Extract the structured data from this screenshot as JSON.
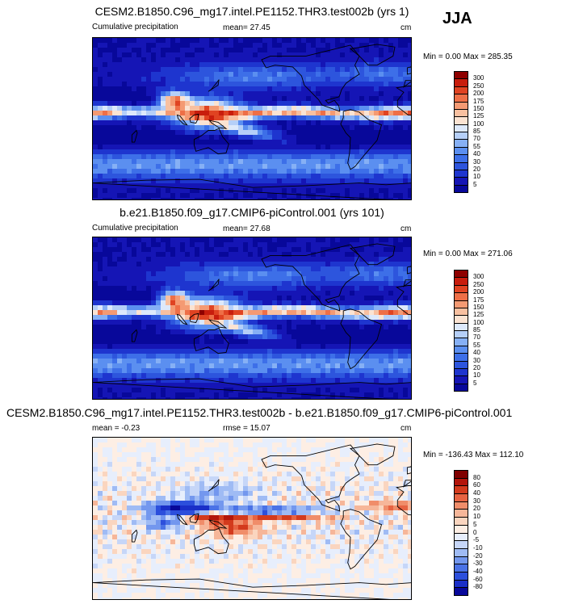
{
  "season": "JJA",
  "panels": [
    {
      "title": "CESM2.B1850.C96_mg17.intel.PE1152.THR3.test002b (yrs 1)",
      "left_label": "Cumulative precipitation",
      "center_label": "mean=  27.45",
      "unit": "cm",
      "minmax": "Min =   0.00 Max = 285.35",
      "kind": "abs"
    },
    {
      "title": "b.e21.B1850.f09_g17.CMIP6-piControl.001 (yrs 101)",
      "left_label": "Cumulative precipitation",
      "center_label": "mean=  27.68",
      "unit": "cm",
      "minmax": "Min =   0.00 Max = 271.06",
      "kind": "abs"
    },
    {
      "title": "CESM2.B1850.C96_mg17.intel.PE1152.THR3.test002b - b.e21.B1850.f09_g17.CMIP6-piControl.001",
      "left_label": "mean =  -0.23",
      "center_label": "rmse =  15.07",
      "unit": "cm",
      "minmax": "Min = -136.43 Max = 112.10",
      "kind": "diff"
    }
  ],
  "chart_data": [
    {
      "type": "heatmap",
      "title": "CESM2.B1850.C96_mg17.intel.PE1152.THR3.test002b (yrs 1)",
      "variable": "Cumulative precipitation",
      "units": "cm",
      "mean": 27.45,
      "min": 0.0,
      "max": 285.35,
      "colorbar_levels": [
        5,
        10,
        20,
        30,
        40,
        55,
        70,
        85,
        100,
        125,
        150,
        175,
        200,
        250,
        300
      ],
      "colorbar_colors": [
        "#08089a",
        "#1515b5",
        "#1e35cf",
        "#2d55dd",
        "#3d6fe8",
        "#5b8ff0",
        "#86b0f5",
        "#b5cff8",
        "#dde9fb",
        "#fbe3d2",
        "#f8c0a0",
        "#f49a73",
        "#ee6f47",
        "#e04322",
        "#c81d0d",
        "#8e0000"
      ]
    },
    {
      "type": "heatmap",
      "title": "b.e21.B1850.f09_g17.CMIP6-piControl.001 (yrs 101)",
      "variable": "Cumulative precipitation",
      "units": "cm",
      "mean": 27.68,
      "min": 0.0,
      "max": 271.06,
      "colorbar_levels": [
        5,
        10,
        20,
        30,
        40,
        55,
        70,
        85,
        100,
        125,
        150,
        175,
        200,
        250,
        300
      ],
      "colorbar_colors": [
        "#08089a",
        "#1515b5",
        "#1e35cf",
        "#2d55dd",
        "#3d6fe8",
        "#5b8ff0",
        "#86b0f5",
        "#b5cff8",
        "#dde9fb",
        "#fbe3d2",
        "#f8c0a0",
        "#f49a73",
        "#ee6f47",
        "#e04322",
        "#c81d0d",
        "#8e0000"
      ]
    },
    {
      "type": "heatmap",
      "title": "CESM2.B1850.C96_mg17.intel.PE1152.THR3.test002b - b.e21.B1850.f09_g17.CMIP6-piControl.001",
      "units": "cm",
      "mean": -0.23,
      "rmse": 15.07,
      "min": -136.43,
      "max": 112.1,
      "colorbar_levels": [
        -80,
        -60,
        -40,
        -30,
        -20,
        -10,
        -5,
        0,
        5,
        10,
        20,
        30,
        40,
        60,
        80
      ],
      "colorbar_colors": [
        "#08089a",
        "#1a2fc8",
        "#2c4fdc",
        "#4a72e6",
        "#7397ee",
        "#9fbbf4",
        "#c6d6f8",
        "#e7eefc",
        "#fdeee4",
        "#fad5bf",
        "#f6b699",
        "#f08d6a",
        "#e76342",
        "#d33a1d",
        "#b3150b",
        "#800000"
      ]
    }
  ]
}
